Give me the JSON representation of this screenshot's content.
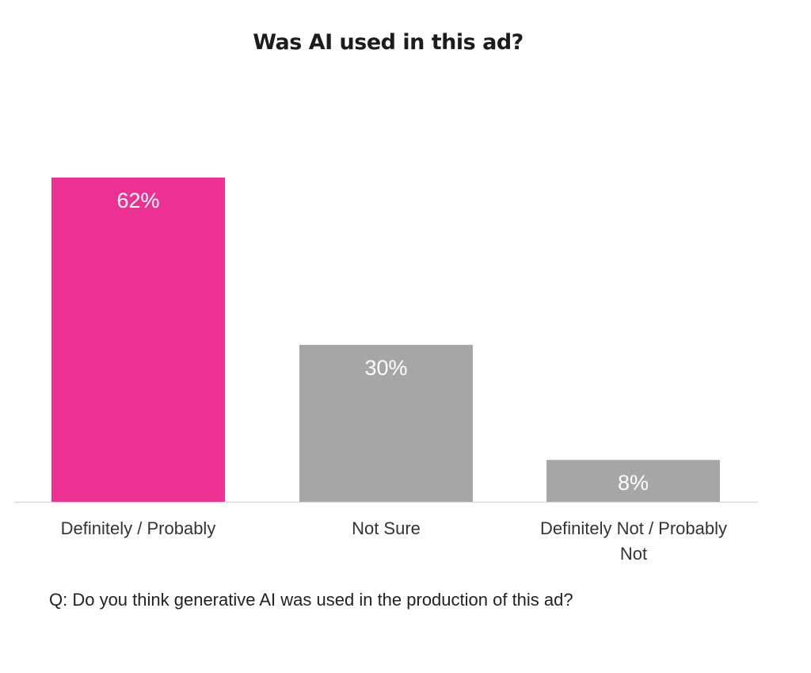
{
  "chart_data": {
    "type": "bar",
    "title": "Was AI used in this ad?",
    "xlabel": "",
    "ylabel": "",
    "categories": [
      [
        "Definitely / Probably"
      ],
      [
        "Not Sure"
      ],
      [
        "Definitely Not / Probably",
        "Not"
      ]
    ],
    "values": [
      62,
      30,
      8
    ],
    "value_labels": [
      "62%",
      "30%",
      "8%"
    ],
    "colors": [
      "#EC3192",
      "#A6A6A6",
      "#A6A6A6"
    ],
    "ylim": [
      0,
      62
    ],
    "grid": false,
    "legend": "none"
  },
  "footnote": "Q: Do you think generative AI was used in the production of this ad?"
}
